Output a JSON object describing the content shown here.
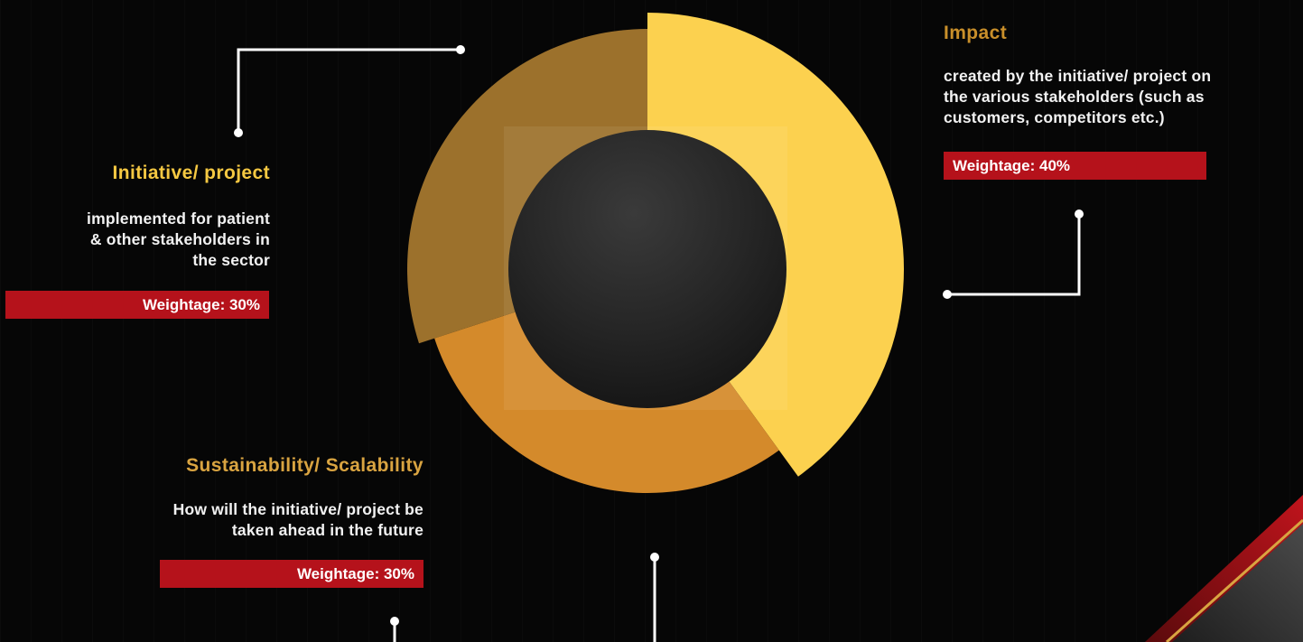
{
  "colors": {
    "background": "#060606",
    "accent_red": "#b5121b",
    "title_gold": "#f5c842",
    "title_amber": "#c98f2a",
    "text": "#f2f2f2"
  },
  "chart_data": {
    "type": "pie",
    "style": "donut",
    "title": "",
    "slices": [
      {
        "label": "Impact",
        "value": 40,
        "color": "#fcd14f"
      },
      {
        "label": "Sustainability/ Scalability",
        "value": 30,
        "color": "#d48a2b"
      },
      {
        "label": "Initiative/ project",
        "value": 30,
        "color": "#9c712c"
      }
    ]
  },
  "panels": {
    "initiative": {
      "title": "Initiative/ project",
      "description": "implemented for patient\n& other stakeholders in\nthe sector",
      "weightage": "Weightage: 30%"
    },
    "impact": {
      "title": "Impact",
      "description": "created by the initiative/ project on\nthe various stakeholders (such as\ncustomers, competitors etc.)",
      "weightage": "Weightage: 40%"
    },
    "sustainability": {
      "title": "Sustainability/ Scalability",
      "description": "How will the initiative/ project be\ntaken ahead in the future",
      "weightage": "Weightage: 30%"
    }
  }
}
